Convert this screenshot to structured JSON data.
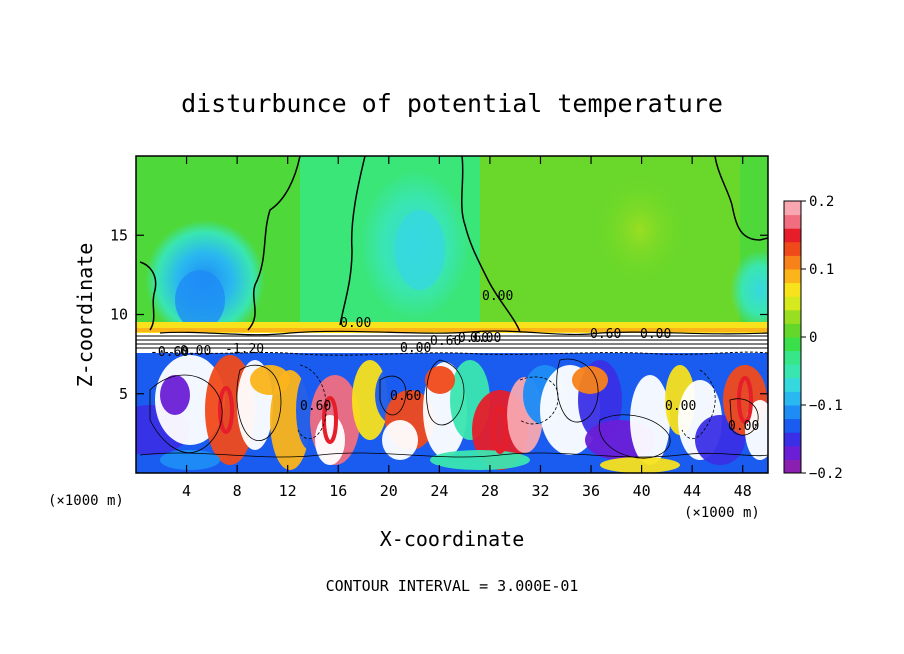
{
  "chart_data": {
    "type": "heatmap",
    "title": "disturbunce of potential temperature",
    "xlabel": "X-coordinate",
    "ylabel": "Z-coordinate",
    "x_unit_label": "(×1000 m)",
    "z_unit_label": "(×1000 m)",
    "footer": "CONTOUR INTERVAL = 3.000E-01",
    "xlim": [
      0,
      50
    ],
    "ylim": [
      0,
      20
    ],
    "x_ticks": [
      4,
      8,
      12,
      16,
      20,
      24,
      28,
      32,
      36,
      40,
      44,
      48
    ],
    "x_tick_labels": [
      "4",
      "8",
      "12",
      "16",
      "20",
      "24",
      "28",
      "32",
      "36",
      "40",
      "44",
      "48"
    ],
    "y_ticks": [
      5,
      10,
      15
    ],
    "y_tick_labels": [
      "5",
      "10",
      "15"
    ],
    "colorbar": {
      "range": [
        -0.2,
        0.2
      ],
      "tick_values": [
        0.2,
        0.1,
        0,
        -0.1,
        -0.2
      ],
      "tick_labels": [
        "0.2",
        "0.1",
        "0",
        "−0.1",
        "−0.2"
      ],
      "colors": [
        "#8b1fb0",
        "#6a1fd6",
        "#3a2fe6",
        "#1a5cf0",
        "#1e8cf5",
        "#2ab8f0",
        "#36d8e0",
        "#3ae6b0",
        "#38e68a",
        "#3ae04a",
        "#64d82a",
        "#9ade22",
        "#d6e81e",
        "#f7e21c",
        "#fbb41a",
        "#f8821a",
        "#f04a1a",
        "#e61e2a",
        "#f06e80",
        "#f8a6b0"
      ]
    },
    "contour_labels": [
      "0.00",
      "0.00",
      "-0.60",
      "-1.20",
      "0.60",
      "0.00",
      "0.60",
      "-0.60",
      "0.60",
      "0.60",
      "0.00",
      "0.00",
      "0.00",
      "0.00",
      "0.00"
    ],
    "field_notes": {
      "upper_layer_colors": "#54dc3c",
      "jump_level": 9
    }
  }
}
